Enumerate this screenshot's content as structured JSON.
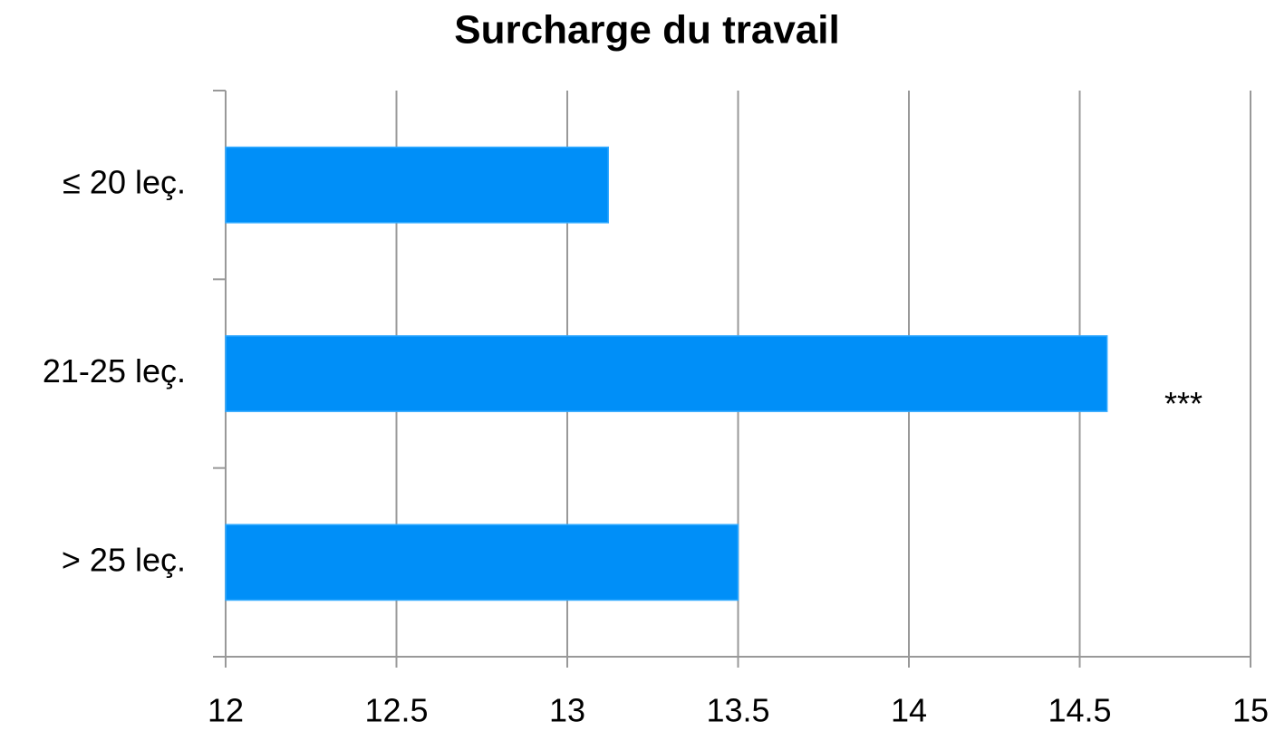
{
  "chart_data": {
    "type": "bar",
    "orientation": "horizontal",
    "title": "Surcharge du travail",
    "categories": [
      "≤ 20 leç.",
      "21-25 leç.",
      "> 25 leç."
    ],
    "values": [
      13.12,
      14.58,
      13.5
    ],
    "color": "#008ff8",
    "xlim": [
      12,
      15
    ],
    "xticks": [
      12,
      12.5,
      13,
      13.5,
      14,
      14.5,
      15
    ],
    "grid": true,
    "annotation": "***"
  }
}
